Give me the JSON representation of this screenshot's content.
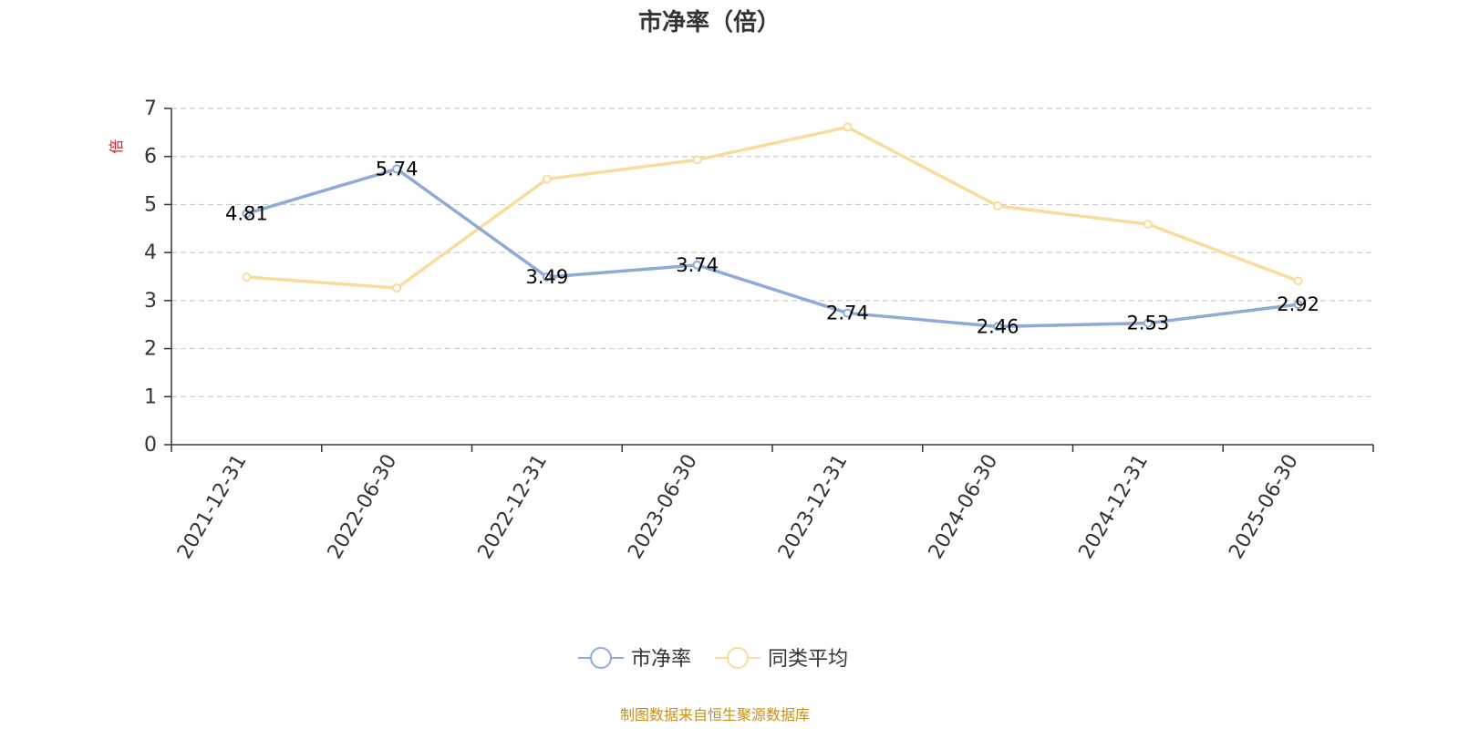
{
  "chart_data": {
    "type": "line",
    "title": "市净率（倍）",
    "ylabel": "倍",
    "categories": [
      "2021-12-31",
      "2022-06-30",
      "2022-12-31",
      "2023-06-30",
      "2023-12-31",
      "2024-06-30",
      "2024-12-31",
      "2025-06-30"
    ],
    "yticks": [
      "0",
      "1",
      "2",
      "3",
      "4",
      "5",
      "6",
      "7"
    ],
    "ylim": [
      0,
      7
    ],
    "grid": true,
    "legend_position": "bottom-center",
    "series": [
      {
        "name": "市净率",
        "color": "#8eaad6",
        "values": [
          4.81,
          5.74,
          3.49,
          3.74,
          2.74,
          2.46,
          2.53,
          2.92
        ],
        "labels": [
          "4.81",
          "5.74",
          "3.49",
          "3.74",
          "2.74",
          "2.46",
          "2.53",
          "2.92"
        ]
      },
      {
        "name": "同类平均",
        "color": "#fbdb9c",
        "values": [
          3.49,
          3.26,
          5.53,
          5.93,
          6.61,
          4.97,
          4.59,
          3.41
        ]
      }
    ],
    "source": "制图数据来自恒生聚源数据库"
  },
  "colors": {
    "unit_label": "#e0191a",
    "source_text": "#c79018",
    "grid": "#cccccc",
    "axis": "#333333"
  }
}
